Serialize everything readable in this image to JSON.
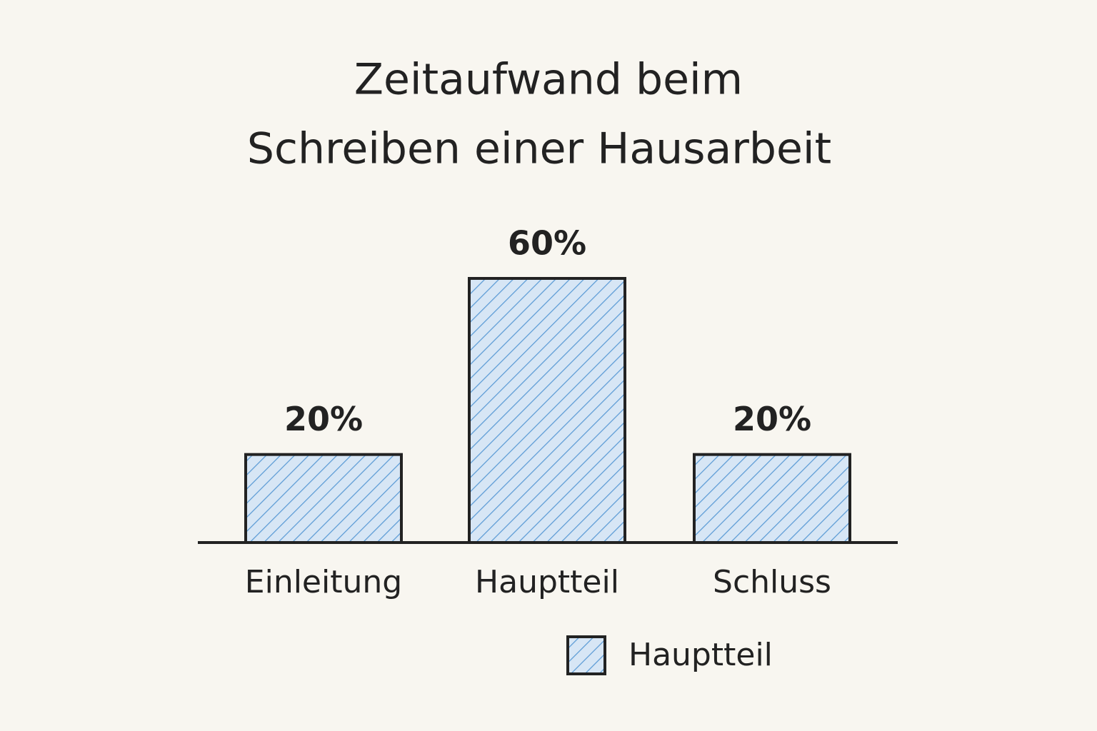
{
  "chart_data": {
    "type": "bar",
    "title": [
      "Zeitaufwand beim",
      "Schreiben einer Hausarbeit"
    ],
    "categories": [
      "Einleitung",
      "Hauptteil",
      "Schluss"
    ],
    "series": [
      {
        "name": "Hauptteil",
        "color": "#5b9bd5",
        "values": [
          20,
          60,
          20
        ],
        "value_labels": [
          "20%",
          "60%",
          "20%"
        ]
      }
    ],
    "legend": "bottom"
  }
}
